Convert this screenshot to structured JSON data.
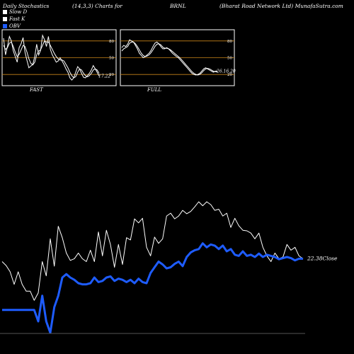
{
  "header": {
    "left": "Daily Stochastics",
    "params": "(14,3,3) Charts for",
    "symbol": "BRNL",
    "company": "(Bharat Road Network Ltd) MunafaSutra.com"
  },
  "legend": [
    {
      "label": "Slow D",
      "color": "#ffffff"
    },
    {
      "label": "Fast K",
      "color": "#ffffff"
    },
    {
      "label": "OBV",
      "color": "#1e5cff"
    }
  ],
  "chart_data": [
    {
      "type": "line",
      "title": "FAST",
      "ylim": [
        0,
        100
      ],
      "levels": [
        80,
        50,
        20
      ],
      "level_labels": [
        "80",
        "50",
        "20"
      ],
      "last_value_label": "17.22",
      "series": [
        {
          "name": "Fast K",
          "values": [
            85,
            55,
            70,
            88,
            80,
            62,
            52,
            42,
            68,
            75,
            86,
            60,
            45,
            32,
            35,
            38,
            52,
            74,
            55,
            63,
            90,
            82,
            70,
            88,
            65,
            55,
            49,
            42,
            44,
            50,
            44,
            38,
            30,
            24,
            14,
            10,
            14,
            24,
            34,
            30,
            22,
            15,
            14,
            18,
            22,
            28,
            36,
            30,
            24,
            17.22
          ]
        },
        {
          "name": "Slow D",
          "values": [
            72,
            65,
            68,
            76,
            78,
            70,
            60,
            52,
            56,
            64,
            72,
            70,
            60,
            48,
            40,
            37,
            42,
            55,
            62,
            64,
            72,
            80,
            78,
            78,
            72,
            65,
            58,
            52,
            48,
            46,
            46,
            44,
            38,
            32,
            24,
            18,
            14,
            16,
            24,
            30,
            28,
            22,
            18,
            16,
            18,
            22,
            28,
            30,
            28,
            22
          ]
        }
      ]
    },
    {
      "type": "line",
      "title": "FULL",
      "ylim": [
        0,
        100
      ],
      "levels": [
        80,
        50,
        20
      ],
      "level_labels": [
        "80",
        "50",
        "20"
      ],
      "last_value_label": "26.16,20",
      "series": [
        {
          "name": "Fast K",
          "values": [
            68,
            72,
            70,
            74,
            82,
            80,
            78,
            72,
            66,
            58,
            54,
            50,
            52,
            55,
            58,
            63,
            70,
            76,
            78,
            75,
            70,
            66,
            66,
            68,
            66,
            62,
            58,
            55,
            52,
            50,
            46,
            42,
            38,
            34,
            30,
            26,
            22,
            20,
            19,
            20,
            22,
            26,
            30,
            32,
            30,
            28,
            26,
            24,
            26,
            26.16
          ]
        },
        {
          "name": "Slow D",
          "values": [
            62,
            66,
            68,
            70,
            76,
            78,
            78,
            75,
            70,
            64,
            58,
            54,
            52,
            53,
            55,
            59,
            64,
            70,
            74,
            75,
            73,
            69,
            67,
            67,
            66,
            64,
            61,
            58,
            55,
            52,
            49,
            45,
            41,
            37,
            33,
            29,
            25,
            22,
            20,
            19,
            20,
            23,
            27,
            30,
            31,
            30,
            28,
            26,
            25,
            25
          ]
        }
      ]
    },
    {
      "type": "line",
      "title": "",
      "last_value_label": "22.38Close",
      "series": [
        {
          "name": "Close",
          "values": [
            20,
            13,
            2,
            -20,
            2,
            -20,
            -32,
            -32,
            -48,
            -35,
            20,
            -5,
            60,
            12,
            82,
            62,
            35,
            22,
            25,
            35,
            25,
            20,
            40,
            20,
            72,
            30,
            75,
            50,
            10,
            50,
            15,
            62,
            58,
            95,
            88,
            96,
            45,
            30,
            63,
            52,
            60,
            100,
            105,
            95,
            100,
            110,
            104,
            108,
            116,
            125,
            118,
            125,
            120,
            110,
            112,
            100,
            105,
            80,
            96,
            83,
            75,
            74,
            70,
            60,
            70,
            45,
            30,
            20,
            35,
            25,
            28,
            50,
            40,
            45,
            30,
            25
          ]
        },
        {
          "name": "OBV",
          "values": [
            -65,
            -65,
            -65,
            -65,
            -65,
            -65,
            -65,
            -65,
            -65,
            -85,
            -40,
            -85,
            -105,
            -60,
            -40,
            -8,
            -2,
            -8,
            -12,
            -18,
            -20,
            -20,
            -18,
            -8,
            -16,
            -14,
            -8,
            -6,
            -14,
            -10,
            -12,
            -16,
            -12,
            -18,
            -10,
            -16,
            -18,
            0,
            10,
            20,
            15,
            8,
            10,
            16,
            20,
            12,
            28,
            36,
            40,
            42,
            52,
            45,
            50,
            48,
            42,
            48,
            38,
            42,
            32,
            30,
            38,
            30,
            32,
            28,
            34,
            28,
            32,
            30,
            28,
            24,
            26,
            28,
            26,
            22,
            25,
            25
          ]
        }
      ]
    }
  ]
}
